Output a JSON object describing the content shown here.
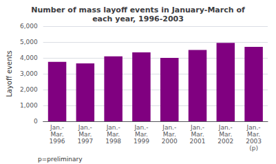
{
  "chart_data": {
    "type": "bar",
    "title": "Number of mass layoff events in January-March of\neach year, 1996-2003",
    "ylabel": "Layoff events",
    "categories": [
      "Jan.-\nMar.\n1996",
      "Jan.-\nMar.\n1997",
      "Jan.-\nMar.\n1998",
      "Jan.-\nMar.\n1999",
      "Jan.-\nMar.\n2000",
      "Jan.-\nMar.\n2001",
      "Jan.-\nMar.\n2002",
      "Jan.-\nMar.\n2003\n(p)"
    ],
    "values": [
      3750,
      3650,
      4100,
      4350,
      4000,
      4500,
      4950,
      4700
    ],
    "color": "#800080",
    "ylim": [
      0,
      6000
    ],
    "yticks": [
      0,
      {
        "value": 1000,
        "label": "1,000"
      },
      {
        "value": 2000,
        "label": "2,000"
      },
      {
        "value": 3000,
        "label": "3,000"
      },
      {
        "value": 4000,
        "label": "4,000"
      },
      {
        "value": 5000,
        "label": "5,000"
      },
      {
        "value": 6000,
        "label": "6,000"
      }
    ],
    "grid": true,
    "annotations": [
      "p=preliminary"
    ]
  }
}
